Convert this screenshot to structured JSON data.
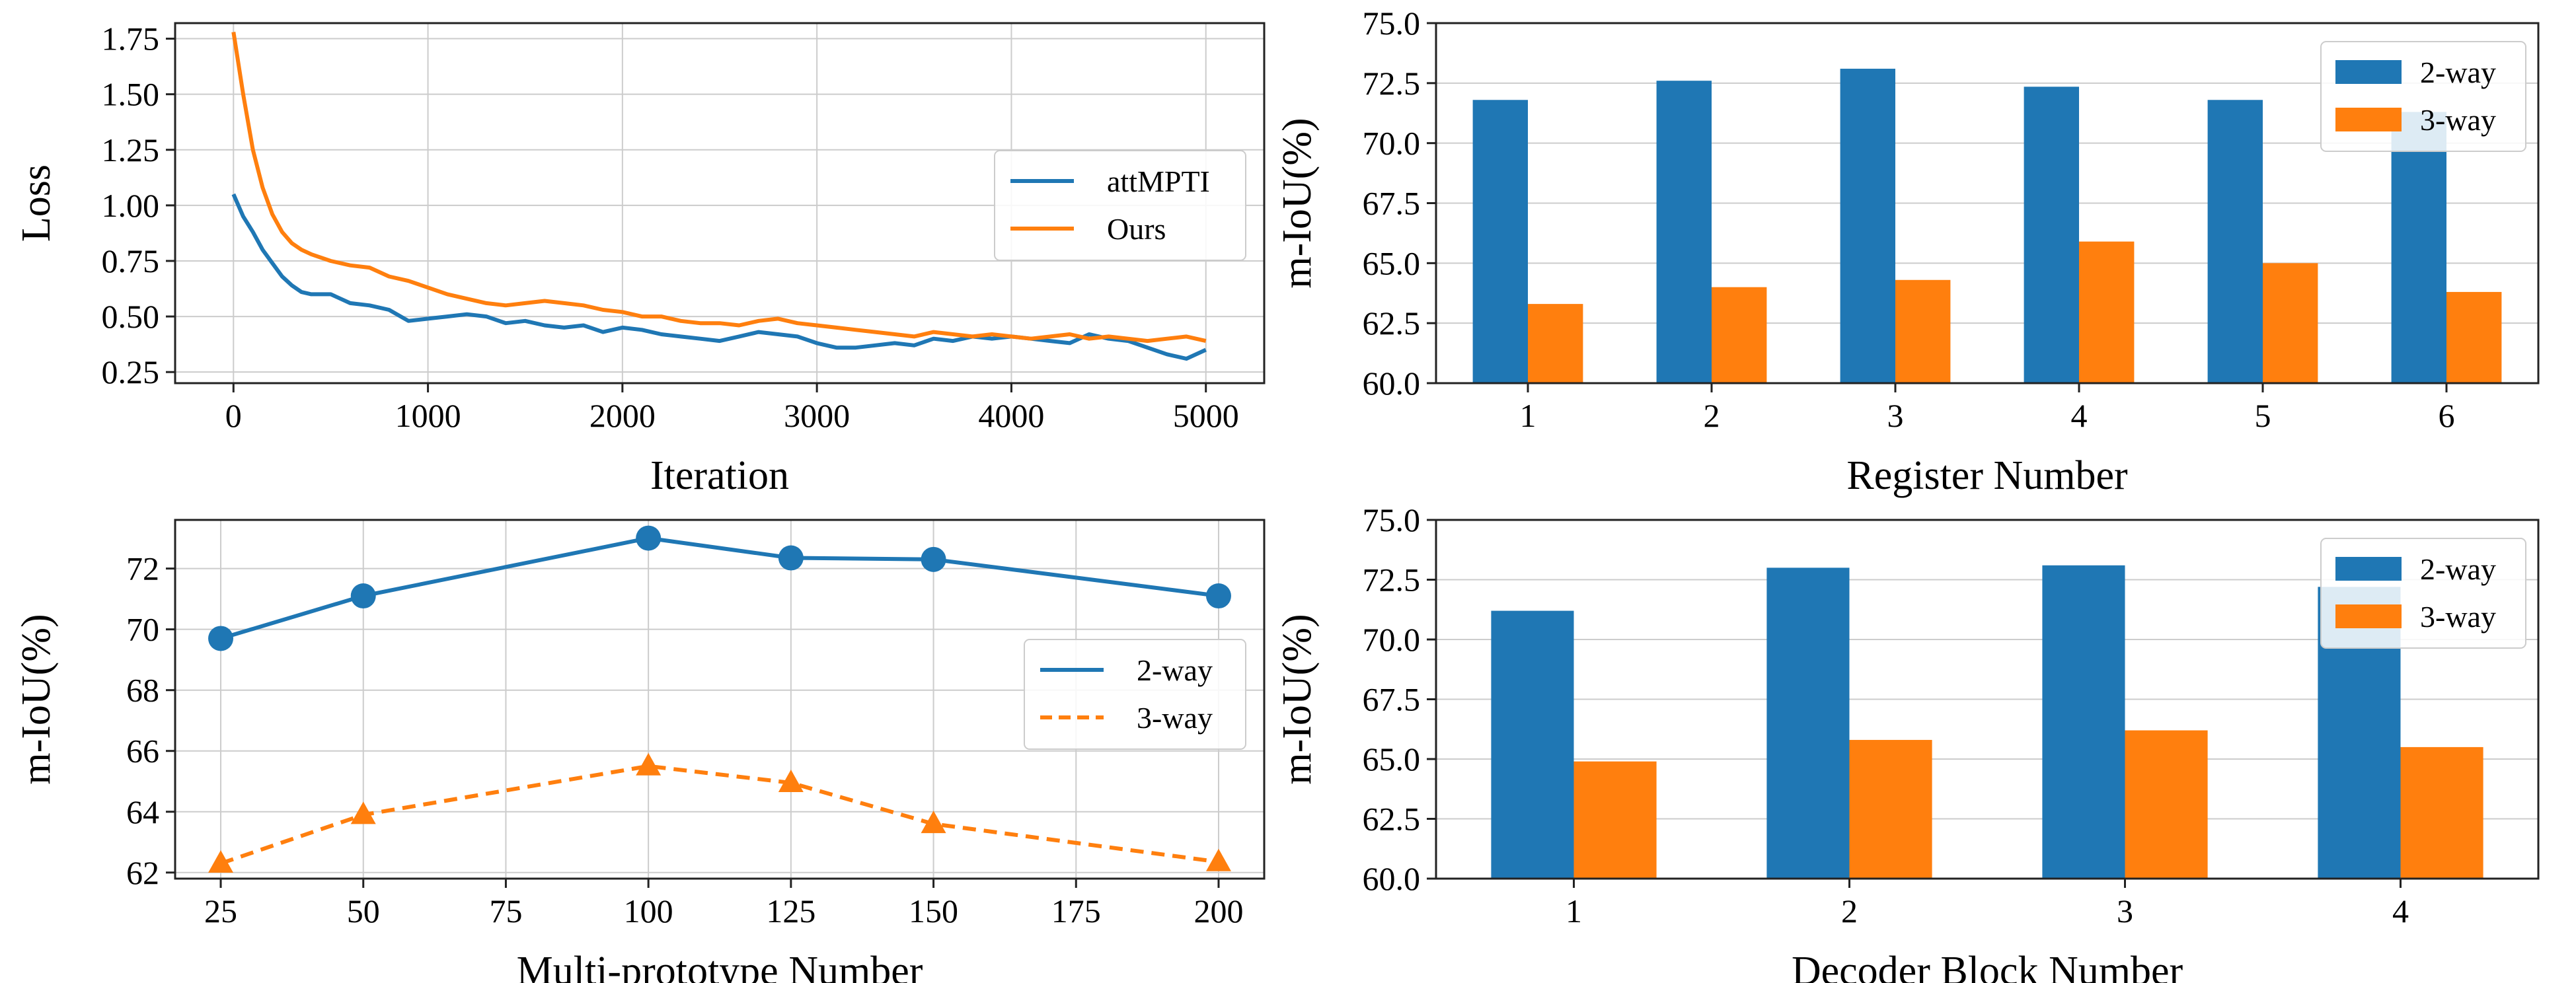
{
  "colors": {
    "blue": "#1f77b4",
    "orange": "#ff7f0e"
  },
  "chart_data": [
    {
      "id": "loss",
      "type": "line",
      "xlabel": "Iteration",
      "ylabel": "Loss",
      "xlim": [
        -300,
        5300
      ],
      "ylim": [
        0.2,
        1.82
      ],
      "xticks": [
        0,
        1000,
        2000,
        3000,
        4000,
        5000
      ],
      "xtick_labels": [
        "0",
        "1000",
        "2000",
        "3000",
        "4000",
        "5000"
      ],
      "yticks": [
        0.25,
        0.5,
        0.75,
        1.0,
        1.25,
        1.5,
        1.75
      ],
      "ytick_labels": [
        "0.25",
        "0.50",
        "0.75",
        "1.00",
        "1.25",
        "1.50",
        "1.75"
      ],
      "grid": true,
      "legend_position": "center-right",
      "series": [
        {
          "name": "attMPTI",
          "color": "#1f77b4",
          "x": [
            0,
            50,
            100,
            150,
            200,
            250,
            300,
            350,
            400,
            500,
            600,
            700,
            800,
            900,
            1000,
            1100,
            1200,
            1300,
            1400,
            1500,
            1600,
            1700,
            1800,
            1900,
            2000,
            2100,
            2200,
            2300,
            2400,
            2500,
            2600,
            2700,
            2800,
            2900,
            3000,
            3100,
            3200,
            3300,
            3400,
            3500,
            3600,
            3700,
            3800,
            3900,
            4000,
            4100,
            4200,
            4300,
            4400,
            4500,
            4600,
            4700,
            4800,
            4900,
            5000
          ],
          "y": [
            1.05,
            0.95,
            0.88,
            0.8,
            0.74,
            0.68,
            0.64,
            0.61,
            0.6,
            0.6,
            0.56,
            0.55,
            0.53,
            0.48,
            0.49,
            0.5,
            0.51,
            0.5,
            0.47,
            0.48,
            0.46,
            0.45,
            0.46,
            0.43,
            0.45,
            0.44,
            0.42,
            0.41,
            0.4,
            0.39,
            0.41,
            0.43,
            0.42,
            0.41,
            0.38,
            0.36,
            0.36,
            0.37,
            0.38,
            0.37,
            0.4,
            0.39,
            0.41,
            0.4,
            0.41,
            0.4,
            0.39,
            0.38,
            0.42,
            0.4,
            0.39,
            0.36,
            0.33,
            0.31,
            0.35
          ]
        },
        {
          "name": "Ours",
          "color": "#ff7f0e",
          "x": [
            0,
            50,
            100,
            150,
            200,
            250,
            300,
            350,
            400,
            500,
            600,
            700,
            800,
            900,
            1000,
            1100,
            1200,
            1300,
            1400,
            1500,
            1600,
            1700,
            1800,
            1900,
            2000,
            2100,
            2200,
            2300,
            2400,
            2500,
            2600,
            2700,
            2800,
            2900,
            3000,
            3100,
            3200,
            3300,
            3400,
            3500,
            3600,
            3700,
            3800,
            3900,
            4000,
            4100,
            4200,
            4300,
            4400,
            4500,
            4600,
            4700,
            4800,
            4900,
            5000
          ],
          "y": [
            1.78,
            1.5,
            1.25,
            1.08,
            0.96,
            0.88,
            0.83,
            0.8,
            0.78,
            0.75,
            0.73,
            0.72,
            0.68,
            0.66,
            0.63,
            0.6,
            0.58,
            0.56,
            0.55,
            0.56,
            0.57,
            0.56,
            0.55,
            0.53,
            0.52,
            0.5,
            0.5,
            0.48,
            0.47,
            0.47,
            0.46,
            0.48,
            0.49,
            0.47,
            0.46,
            0.45,
            0.44,
            0.43,
            0.42,
            0.41,
            0.43,
            0.42,
            0.41,
            0.42,
            0.41,
            0.4,
            0.41,
            0.42,
            0.4,
            0.41,
            0.4,
            0.39,
            0.4,
            0.41,
            0.39
          ]
        }
      ]
    },
    {
      "id": "register",
      "type": "bar",
      "xlabel": "Register Number",
      "ylabel": "m-IoU(%)",
      "categories": [
        "1",
        "2",
        "3",
        "4",
        "5",
        "6"
      ],
      "ylim": [
        60.0,
        75.0
      ],
      "yticks": [
        60.0,
        62.5,
        65.0,
        67.5,
        70.0,
        72.5,
        75.0
      ],
      "ytick_labels": [
        "60.0",
        "62.5",
        "65.0",
        "67.5",
        "70.0",
        "72.5",
        "75.0"
      ],
      "grid": true,
      "legend_position": "top-right",
      "series": [
        {
          "name": "2-way",
          "color": "#1f77b4",
          "values": [
            71.8,
            72.6,
            73.1,
            72.35,
            71.8,
            71.3
          ]
        },
        {
          "name": "3-way",
          "color": "#ff7f0e",
          "values": [
            63.3,
            64.0,
            64.3,
            65.9,
            65.0,
            63.8
          ]
        }
      ]
    },
    {
      "id": "prototype",
      "type": "line",
      "xlabel": "Multi-prototype Number",
      "ylabel": "m-IoU(%)",
      "xlim": [
        17,
        208
      ],
      "ylim": [
        61.8,
        73.6
      ],
      "xticks": [
        25,
        50,
        75,
        100,
        125,
        150,
        175,
        200
      ],
      "xtick_labels": [
        "25",
        "50",
        "75",
        "100",
        "125",
        "150",
        "175",
        "200"
      ],
      "yticks": [
        62,
        64,
        66,
        68,
        70,
        72
      ],
      "ytick_labels": [
        "62",
        "64",
        "66",
        "68",
        "70",
        "72"
      ],
      "grid": true,
      "legend_position": "center-right",
      "series": [
        {
          "name": "2-way",
          "color": "#1f77b4",
          "marker": "circle",
          "dash": "solid",
          "x": [
            25,
            50,
            100,
            125,
            150,
            200
          ],
          "y": [
            69.7,
            71.1,
            73.0,
            72.35,
            72.3,
            71.1
          ]
        },
        {
          "name": "3-way",
          "color": "#ff7f0e",
          "marker": "triangle",
          "dash": "dashed",
          "x": [
            25,
            50,
            100,
            125,
            150,
            200
          ],
          "y": [
            62.3,
            63.9,
            65.5,
            64.95,
            63.6,
            62.35
          ]
        }
      ]
    },
    {
      "id": "decoder",
      "type": "bar",
      "xlabel": "Decoder Block Number",
      "ylabel": "m-IoU(%)",
      "categories": [
        "1",
        "2",
        "3",
        "4"
      ],
      "ylim": [
        60.0,
        75.0
      ],
      "yticks": [
        60.0,
        62.5,
        65.0,
        67.5,
        70.0,
        72.5,
        75.0
      ],
      "ytick_labels": [
        "60.0",
        "62.5",
        "65.0",
        "67.5",
        "70.0",
        "72.5",
        "75.0"
      ],
      "grid": true,
      "legend_position": "top-right",
      "series": [
        {
          "name": "2-way",
          "color": "#1f77b4",
          "values": [
            71.2,
            73.0,
            73.1,
            72.2
          ]
        },
        {
          "name": "3-way",
          "color": "#ff7f0e",
          "values": [
            64.9,
            65.8,
            66.2,
            65.5
          ]
        }
      ]
    }
  ]
}
